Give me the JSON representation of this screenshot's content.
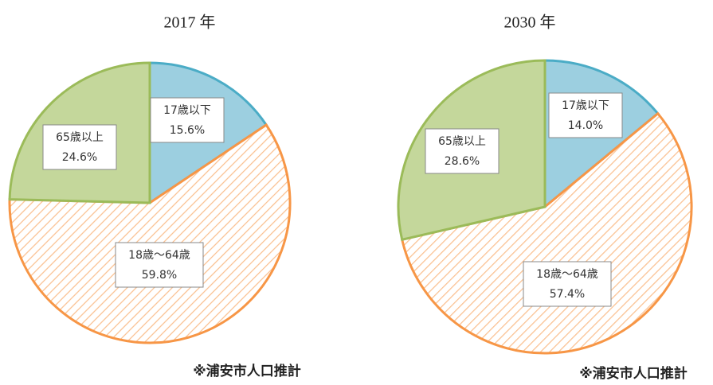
{
  "chart_data": [
    {
      "type": "pie",
      "title": "2017 年",
      "categories": [
        "17歳以下",
        "18歳～64歳",
        "65歳以上"
      ],
      "values": [
        15.6,
        59.8,
        24.6
      ],
      "value_labels": [
        "15.6%",
        "59.8%",
        "24.6%"
      ],
      "colors": [
        "#9ccfe0",
        "#f79646",
        "#c4d79b"
      ],
      "edge_colors": [
        "#4bacc6",
        "#f79646",
        "#9bbb59"
      ],
      "note": "※浦安市人口推計"
    },
    {
      "type": "pie",
      "title": "2030 年",
      "categories": [
        "17歳以下",
        "18歳～64歳",
        "65歳以上"
      ],
      "values": [
        14.0,
        57.4,
        28.6
      ],
      "value_labels": [
        "14.0%",
        "57.4%",
        "28.6%"
      ],
      "colors": [
        "#9ccfe0",
        "#f79646",
        "#c4d79b"
      ],
      "edge_colors": [
        "#4bacc6",
        "#f79646",
        "#9bbb59"
      ],
      "note": "※浦安市人口推計"
    }
  ]
}
